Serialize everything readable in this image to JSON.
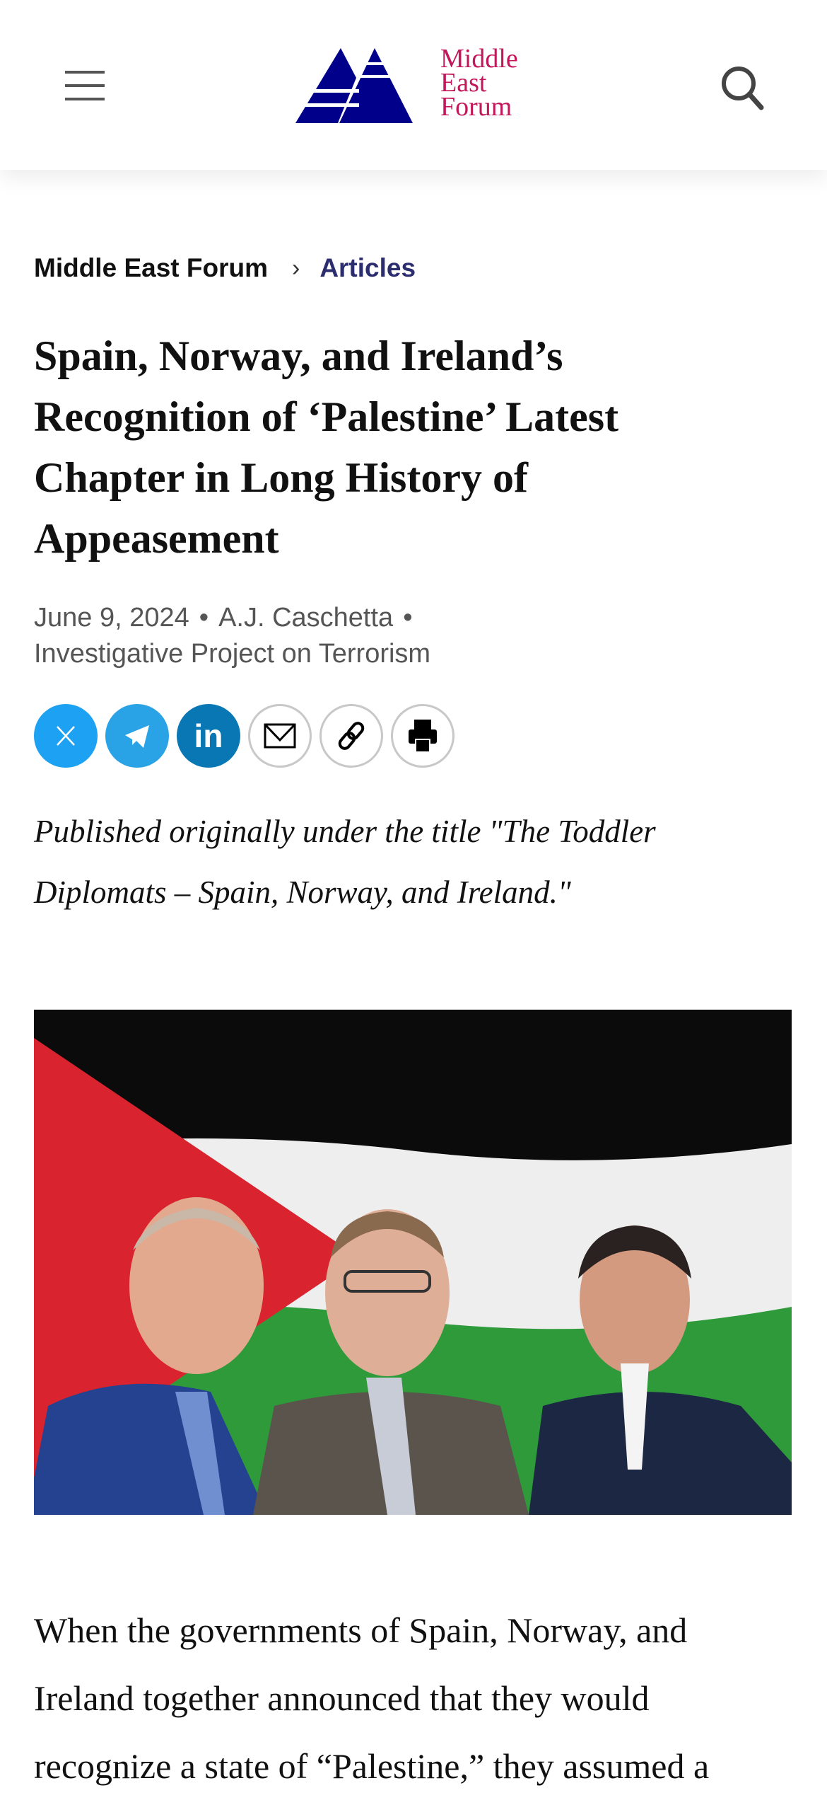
{
  "header": {
    "logo_text": [
      "Middle",
      "East",
      "Forum"
    ],
    "colors": {
      "logo_blue": "#00008b",
      "logo_red": "#c2185b"
    }
  },
  "breadcrumb": {
    "home": "Middle East Forum",
    "separator": "›",
    "current": "Articles"
  },
  "article": {
    "title_lines": [
      "Spain, Norway, and Ireland’s",
      "Recognition of ‘Palestine’ Latest",
      "Chapter in Long History of",
      "Appeasement"
    ],
    "date": "June 9, 2024",
    "author": "A.J. Caschetta",
    "source": "Investigative Project on Terrorism",
    "share": [
      {
        "icon": "x-icon",
        "color": "#1da1f2"
      },
      {
        "icon": "telegram-icon",
        "color": "#2aa3e6"
      },
      {
        "icon": "linkedin-icon",
        "color": "#0a77b5"
      },
      {
        "icon": "email-icon"
      },
      {
        "icon": "link-icon"
      },
      {
        "icon": "print-icon"
      }
    ],
    "intro_lines": [
      "Published originally under the title \"The Toddler",
      "Diplomats – Spain, Norway, and Ireland.\""
    ],
    "body_lines": [
      "When the governments of Spain, Norway, and",
      "Ireland together announced that they would",
      "recognize a state of “Palestine,” they assumed a"
    ]
  }
}
